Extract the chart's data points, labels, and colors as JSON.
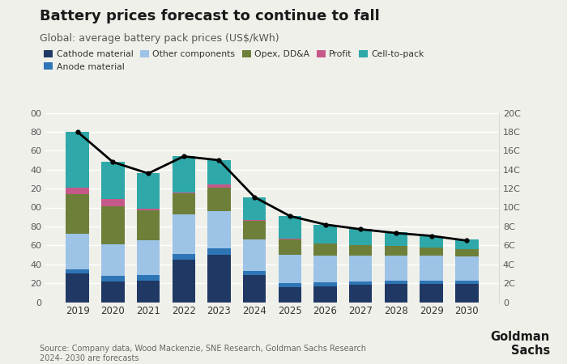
{
  "title": "Battery prices forecast to continue to fall",
  "subtitle": "Global: average battery pack prices (US$/kWh)",
  "years": [
    2019,
    2020,
    2021,
    2022,
    2023,
    2024,
    2025,
    2026,
    2027,
    2028,
    2029,
    2030
  ],
  "cathode_material": [
    30,
    22,
    23,
    45,
    50,
    29,
    16,
    17,
    18,
    19,
    19,
    19
  ],
  "anode_material": [
    5,
    6,
    6,
    6,
    7,
    4,
    4,
    4,
    4,
    4,
    4,
    4
  ],
  "other_components": [
    37,
    33,
    36,
    42,
    39,
    33,
    30,
    28,
    27,
    26,
    26,
    25
  ],
  "opex_dda": [
    42,
    40,
    32,
    22,
    25,
    20,
    16,
    13,
    11,
    10,
    9,
    8
  ],
  "profit": [
    7,
    8,
    2,
    1,
    3,
    1,
    1,
    0,
    0,
    0,
    0,
    0
  ],
  "cell_to_pack": [
    59,
    39,
    37,
    38,
    26,
    24,
    24,
    20,
    17,
    15,
    12,
    10
  ],
  "line_values": [
    180,
    148,
    136,
    154,
    150,
    111,
    91,
    82,
    77,
    73,
    70,
    65
  ],
  "colors": {
    "cathode_material": "#1f3864",
    "anode_material": "#2e75b6",
    "other_components": "#9dc3e6",
    "opex_dda": "#6e7f3a",
    "profit": "#c55a8a",
    "cell_to_pack": "#2ea8a8"
  },
  "legend_labels": [
    "Cathode material",
    "Anode material",
    "Other components",
    "Opex, DD&A",
    "Profit",
    "Cell-to-pack"
  ],
  "source_text": "Source: Company data, Wood Mackenzie, SNE Research, Goldman Sachs Research\n2024- 2030 are forecasts",
  "ylim": [
    0,
    200
  ],
  "background_color": "#f0f0eb"
}
